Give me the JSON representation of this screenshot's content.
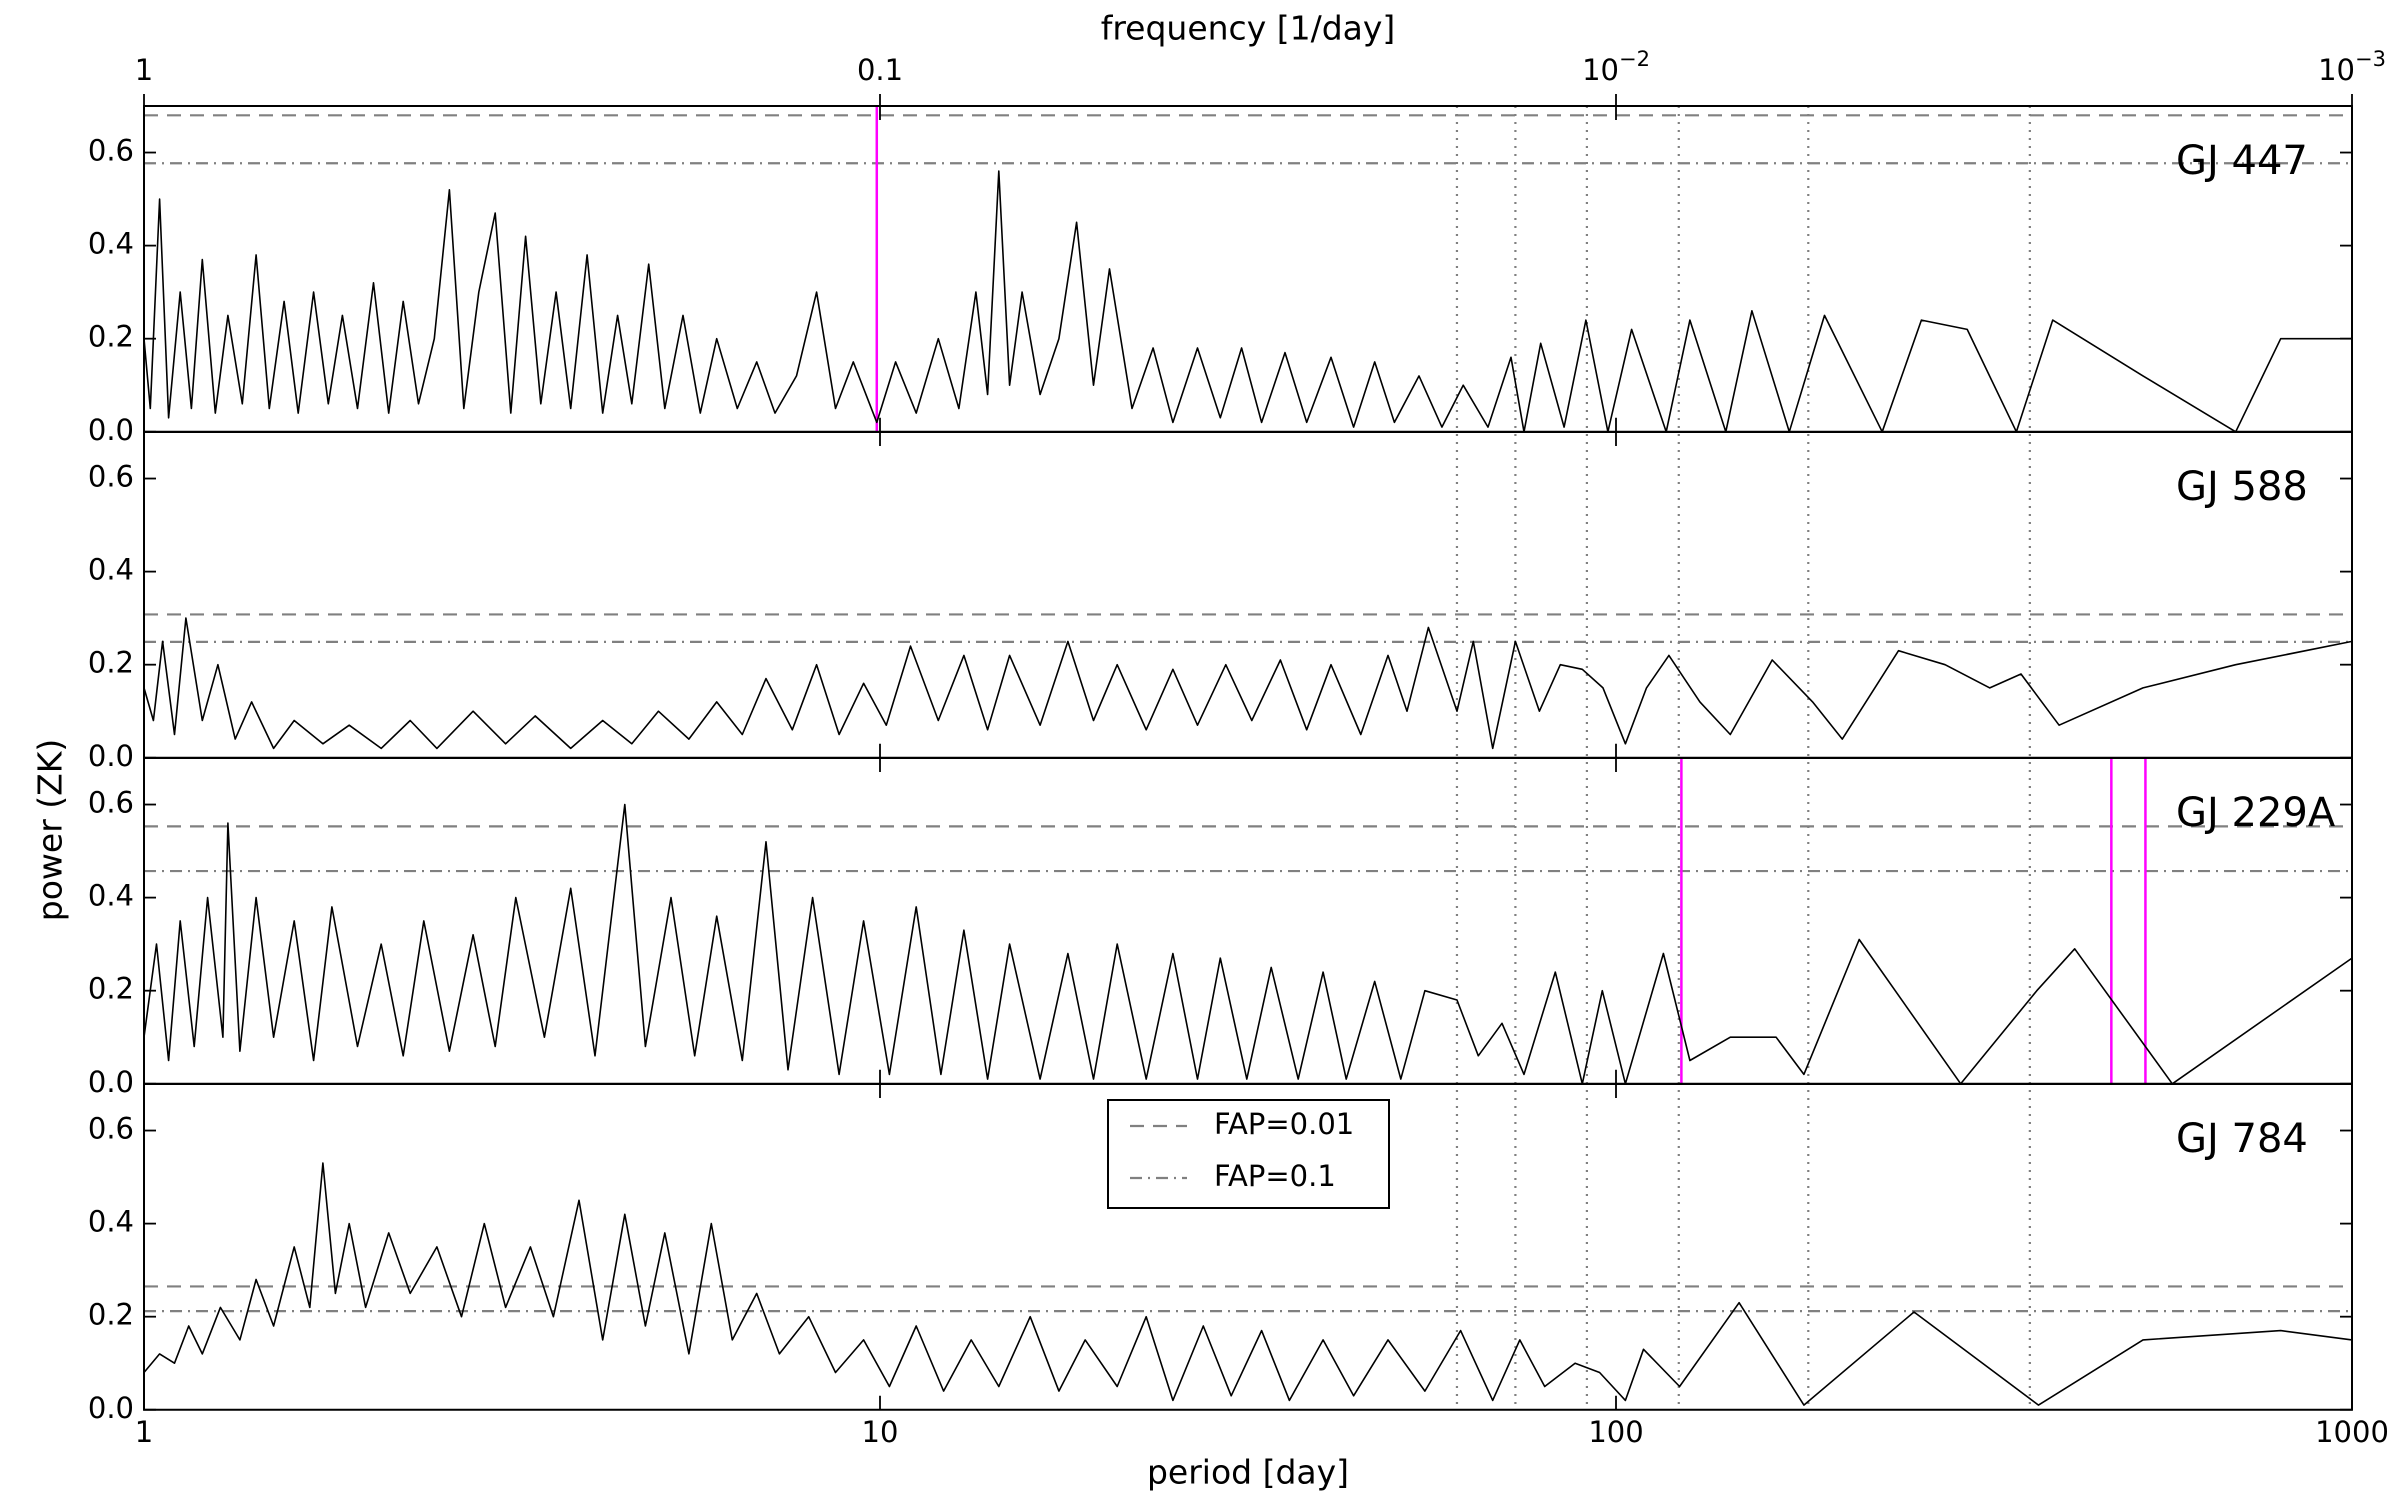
{
  "chart_data": {
    "type": "line",
    "xscale": "log",
    "xlabel": "period [day]",
    "top_xlabel": "frequency [1/day]",
    "ylabel": "power (ZK)",
    "xlim": [
      1,
      1000
    ],
    "xticks": [
      1,
      10,
      100,
      1000
    ],
    "top_xticks": [
      1,
      0.1,
      {
        "value": 0.01,
        "label": "10",
        "exponent": "−2"
      },
      {
        "value": 0.001,
        "label": "10",
        "exponent": "−3"
      }
    ],
    "ylim": [
      0,
      0.7
    ],
    "yticks": [
      {
        "value": 0,
        "label": "0.0"
      },
      0.2,
      0.4,
      0.6
    ],
    "line_color": "#000000",
    "marker_color": "#ff00ff",
    "reference_color": "#808080",
    "reference_periods": [
      365,
      182.5,
      121.7,
      91.3,
      73,
      60.8
    ],
    "legend": [
      {
        "name": "FAP=0.01",
        "style": "dashed"
      },
      {
        "name": "FAP=0.1",
        "style": "dashdot"
      }
    ],
    "panels": [
      {
        "label": "GJ 447",
        "label_color": "#b8860b",
        "fap": [
          0.68,
          0.577
        ],
        "markers": [
          9.9
        ],
        "x": [
          1,
          1.02,
          1.05,
          1.08,
          1.12,
          1.16,
          1.2,
          1.25,
          1.3,
          1.36,
          1.42,
          1.48,
          1.55,
          1.62,
          1.7,
          1.78,
          1.86,
          1.95,
          2.05,
          2.15,
          2.25,
          2.36,
          2.48,
          2.6,
          2.72,
          2.85,
          3.0,
          3.15,
          3.3,
          3.46,
          3.63,
          3.8,
          4.0,
          4.2,
          4.4,
          4.6,
          4.85,
          5.1,
          5.4,
          5.7,
          6.0,
          6.4,
          6.8,
          7.2,
          7.7,
          8.2,
          8.7,
          9.2,
          9.9,
          10.5,
          11.2,
          12,
          12.8,
          13.5,
          14,
          14.5,
          15,
          15.6,
          16.5,
          17.5,
          18.5,
          19.5,
          20.5,
          22,
          23.5,
          25,
          27,
          29,
          31,
          33,
          35.5,
          38,
          41,
          44,
          47,
          50,
          54,
          58,
          62,
          67,
          72,
          75,
          79,
          85,
          91,
          97.5,
          105,
          117,
          126,
          141,
          153,
          172,
          192,
          230,
          260,
          300,
          350,
          392,
          520,
          695,
          800,
          1000
        ],
        "values": [
          0.2,
          0.05,
          0.5,
          0.03,
          0.3,
          0.05,
          0.37,
          0.04,
          0.25,
          0.06,
          0.38,
          0.05,
          0.28,
          0.04,
          0.3,
          0.06,
          0.25,
          0.05,
          0.32,
          0.04,
          0.28,
          0.06,
          0.2,
          0.52,
          0.05,
          0.3,
          0.47,
          0.04,
          0.42,
          0.06,
          0.3,
          0.05,
          0.38,
          0.04,
          0.25,
          0.06,
          0.36,
          0.05,
          0.25,
          0.04,
          0.2,
          0.05,
          0.15,
          0.04,
          0.12,
          0.3,
          0.05,
          0.15,
          0.02,
          0.15,
          0.04,
          0.2,
          0.05,
          0.3,
          0.08,
          0.56,
          0.1,
          0.3,
          0.08,
          0.2,
          0.45,
          0.1,
          0.35,
          0.05,
          0.18,
          0.02,
          0.18,
          0.03,
          0.18,
          0.02,
          0.17,
          0.02,
          0.16,
          0.01,
          0.15,
          0.02,
          0.12,
          0.01,
          0.1,
          0.01,
          0.16,
          0.0,
          0.19,
          0.01,
          0.24,
          0.0,
          0.22,
          0.0,
          0.24,
          0.0,
          0.26,
          0.0,
          0.25,
          0.0,
          0.24,
          0.22,
          0.0,
          0.24,
          0.12,
          0.0,
          0.2,
          0.2
        ]
      },
      {
        "label": "GJ 588",
        "label_color": "#000000",
        "fap": [
          0.308,
          0.249
        ],
        "markers": [],
        "x": [
          1,
          1.03,
          1.06,
          1.1,
          1.14,
          1.2,
          1.26,
          1.33,
          1.4,
          1.5,
          1.6,
          1.75,
          1.9,
          2.1,
          2.3,
          2.5,
          2.8,
          3.1,
          3.4,
          3.8,
          4.2,
          4.6,
          5.0,
          5.5,
          6.0,
          6.5,
          7.0,
          7.6,
          8.2,
          8.8,
          9.5,
          10.2,
          11,
          12,
          13,
          14,
          15,
          16.5,
          18,
          19.5,
          21,
          23,
          25,
          27,
          29.5,
          32,
          35,
          38,
          41,
          45,
          49,
          52,
          55.6,
          60.8,
          64,
          68,
          73,
          78.7,
          84,
          90,
          96,
          103,
          110,
          118,
          130,
          143,
          163,
          185,
          203,
          242,
          280,
          322,
          355,
          400,
          520,
          695,
          1000
        ],
        "values": [
          0.15,
          0.08,
          0.25,
          0.05,
          0.3,
          0.08,
          0.2,
          0.04,
          0.12,
          0.02,
          0.08,
          0.03,
          0.07,
          0.02,
          0.08,
          0.02,
          0.1,
          0.03,
          0.09,
          0.02,
          0.08,
          0.03,
          0.1,
          0.04,
          0.12,
          0.05,
          0.17,
          0.06,
          0.2,
          0.05,
          0.16,
          0.07,
          0.24,
          0.08,
          0.22,
          0.06,
          0.22,
          0.07,
          0.25,
          0.08,
          0.2,
          0.06,
          0.19,
          0.07,
          0.2,
          0.08,
          0.21,
          0.06,
          0.2,
          0.05,
          0.22,
          0.1,
          0.28,
          0.1,
          0.25,
          0.02,
          0.25,
          0.1,
          0.2,
          0.19,
          0.15,
          0.03,
          0.15,
          0.22,
          0.12,
          0.05,
          0.21,
          0.12,
          0.04,
          0.23,
          0.2,
          0.15,
          0.18,
          0.07,
          0.15,
          0.2,
          0.25
        ]
      },
      {
        "label": "GJ 229A",
        "label_color": "#008000",
        "fap": [
          0.553,
          0.457
        ],
        "markers": [
          122.7,
          471,
          524
        ],
        "x": [
          1,
          1.04,
          1.08,
          1.12,
          1.17,
          1.22,
          1.28,
          1.3,
          1.35,
          1.42,
          1.5,
          1.6,
          1.7,
          1.8,
          1.95,
          2.1,
          2.25,
          2.4,
          2.6,
          2.8,
          3.0,
          3.2,
          3.5,
          3.8,
          4.1,
          4.5,
          4.8,
          5.2,
          5.6,
          6.0,
          6.5,
          7.0,
          7.5,
          8.1,
          8.8,
          9.5,
          10.3,
          11.2,
          12.1,
          13,
          14,
          15,
          16.5,
          18,
          19.5,
          21,
          23,
          25,
          27,
          29,
          31.5,
          34,
          37,
          40,
          43,
          47,
          51,
          55,
          60.8,
          65,
          70,
          75,
          82.7,
          90,
          95.8,
          103,
          116,
          126,
          143,
          165,
          180,
          214,
          294,
          373,
          420,
          570,
          1000
        ],
        "values": [
          0.1,
          0.3,
          0.05,
          0.35,
          0.08,
          0.4,
          0.1,
          0.56,
          0.07,
          0.4,
          0.1,
          0.35,
          0.05,
          0.38,
          0.08,
          0.3,
          0.06,
          0.35,
          0.07,
          0.32,
          0.08,
          0.4,
          0.1,
          0.42,
          0.06,
          0.6,
          0.08,
          0.4,
          0.06,
          0.36,
          0.05,
          0.52,
          0.03,
          0.4,
          0.02,
          0.35,
          0.02,
          0.38,
          0.02,
          0.33,
          0.01,
          0.3,
          0.01,
          0.28,
          0.01,
          0.3,
          0.01,
          0.28,
          0.01,
          0.27,
          0.01,
          0.25,
          0.01,
          0.24,
          0.01,
          0.22,
          0.01,
          0.2,
          0.18,
          0.06,
          0.13,
          0.02,
          0.24,
          0.0,
          0.2,
          0.0,
          0.28,
          0.05,
          0.1,
          0.1,
          0.02,
          0.31,
          0.0,
          0.2,
          0.29,
          0.0,
          0.27
        ]
      },
      {
        "label": "GJ 784",
        "label_color": "#0000ff",
        "fap": [
          0.265,
          0.212
        ],
        "markers": [],
        "x": [
          1,
          1.05,
          1.1,
          1.15,
          1.2,
          1.27,
          1.35,
          1.42,
          1.5,
          1.6,
          1.68,
          1.75,
          1.82,
          1.9,
          2.0,
          2.15,
          2.3,
          2.5,
          2.7,
          2.9,
          3.1,
          3.35,
          3.6,
          3.9,
          4.2,
          4.5,
          4.8,
          5.1,
          5.5,
          5.9,
          6.3,
          6.8,
          7.3,
          8,
          8.7,
          9.5,
          10.3,
          11.2,
          12.2,
          13.3,
          14.5,
          16,
          17.5,
          19,
          21,
          23,
          25,
          27.5,
          30,
          33,
          36,
          40,
          44,
          49,
          55,
          61.5,
          68,
          74,
          80,
          88,
          95,
          103,
          109,
          122,
          147,
          180,
          254,
          375,
          520,
          800,
          1000
        ],
        "values": [
          0.08,
          0.12,
          0.1,
          0.18,
          0.12,
          0.22,
          0.15,
          0.28,
          0.18,
          0.35,
          0.22,
          0.53,
          0.25,
          0.4,
          0.22,
          0.38,
          0.25,
          0.35,
          0.2,
          0.4,
          0.22,
          0.35,
          0.2,
          0.45,
          0.15,
          0.42,
          0.18,
          0.38,
          0.12,
          0.4,
          0.15,
          0.25,
          0.12,
          0.2,
          0.08,
          0.15,
          0.05,
          0.18,
          0.04,
          0.15,
          0.05,
          0.2,
          0.04,
          0.15,
          0.05,
          0.2,
          0.02,
          0.18,
          0.03,
          0.17,
          0.02,
          0.15,
          0.03,
          0.15,
          0.04,
          0.17,
          0.02,
          0.15,
          0.05,
          0.1,
          0.08,
          0.02,
          0.13,
          0.05,
          0.23,
          0.01,
          0.21,
          0.01,
          0.15,
          0.17,
          0.15
        ]
      }
    ]
  }
}
